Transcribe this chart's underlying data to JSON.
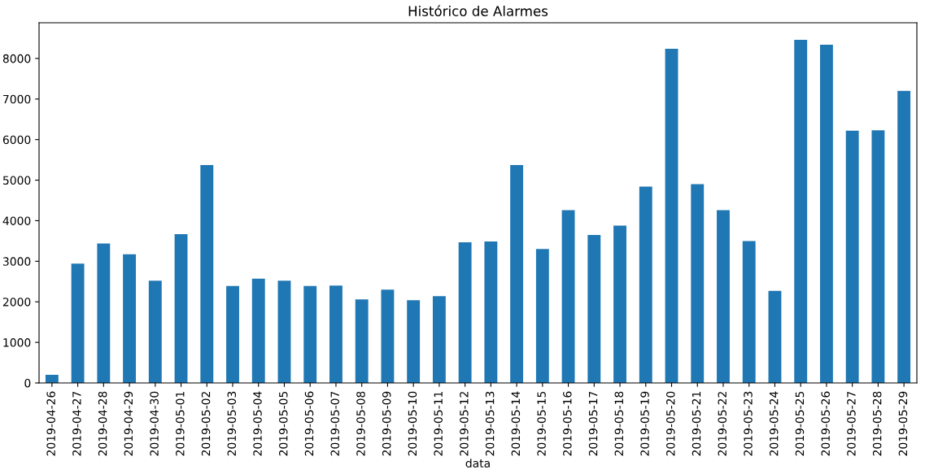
{
  "chart_data": {
    "type": "bar",
    "title": "Histórico de Alarmes",
    "xlabel": "data",
    "categories": [
      "2019-04-26",
      "2019-04-27",
      "2019-04-28",
      "2019-04-29",
      "2019-04-30",
      "2019-05-01",
      "2019-05-02",
      "2019-05-03",
      "2019-05-04",
      "2019-05-05",
      "2019-05-06",
      "2019-05-07",
      "2019-05-08",
      "2019-05-09",
      "2019-05-10",
      "2019-05-11",
      "2019-05-12",
      "2019-05-13",
      "2019-05-14",
      "2019-05-15",
      "2019-05-16",
      "2019-05-17",
      "2019-05-18",
      "2019-05-19",
      "2019-05-20",
      "2019-05-21",
      "2019-05-22",
      "2019-05-23",
      "2019-05-24",
      "2019-05-25",
      "2019-05-26",
      "2019-05-27",
      "2019-05-28",
      "2019-05-29"
    ],
    "values": [
      200,
      2940,
      3440,
      3170,
      2520,
      3670,
      5370,
      2390,
      2570,
      2520,
      2390,
      2400,
      2060,
      2300,
      2040,
      2140,
      3470,
      3490,
      5370,
      3300,
      4260,
      3650,
      3880,
      4840,
      8240,
      4900,
      4260,
      3500,
      2270,
      8460,
      8340,
      6220,
      6230,
      7200
    ],
    "color": "#1f77b4",
    "ylim": [
      0,
      8880
    ],
    "yticks": [
      0,
      1000,
      2000,
      3000,
      4000,
      5000,
      6000,
      7000,
      8000
    ],
    "grid": false,
    "legend": false
  }
}
